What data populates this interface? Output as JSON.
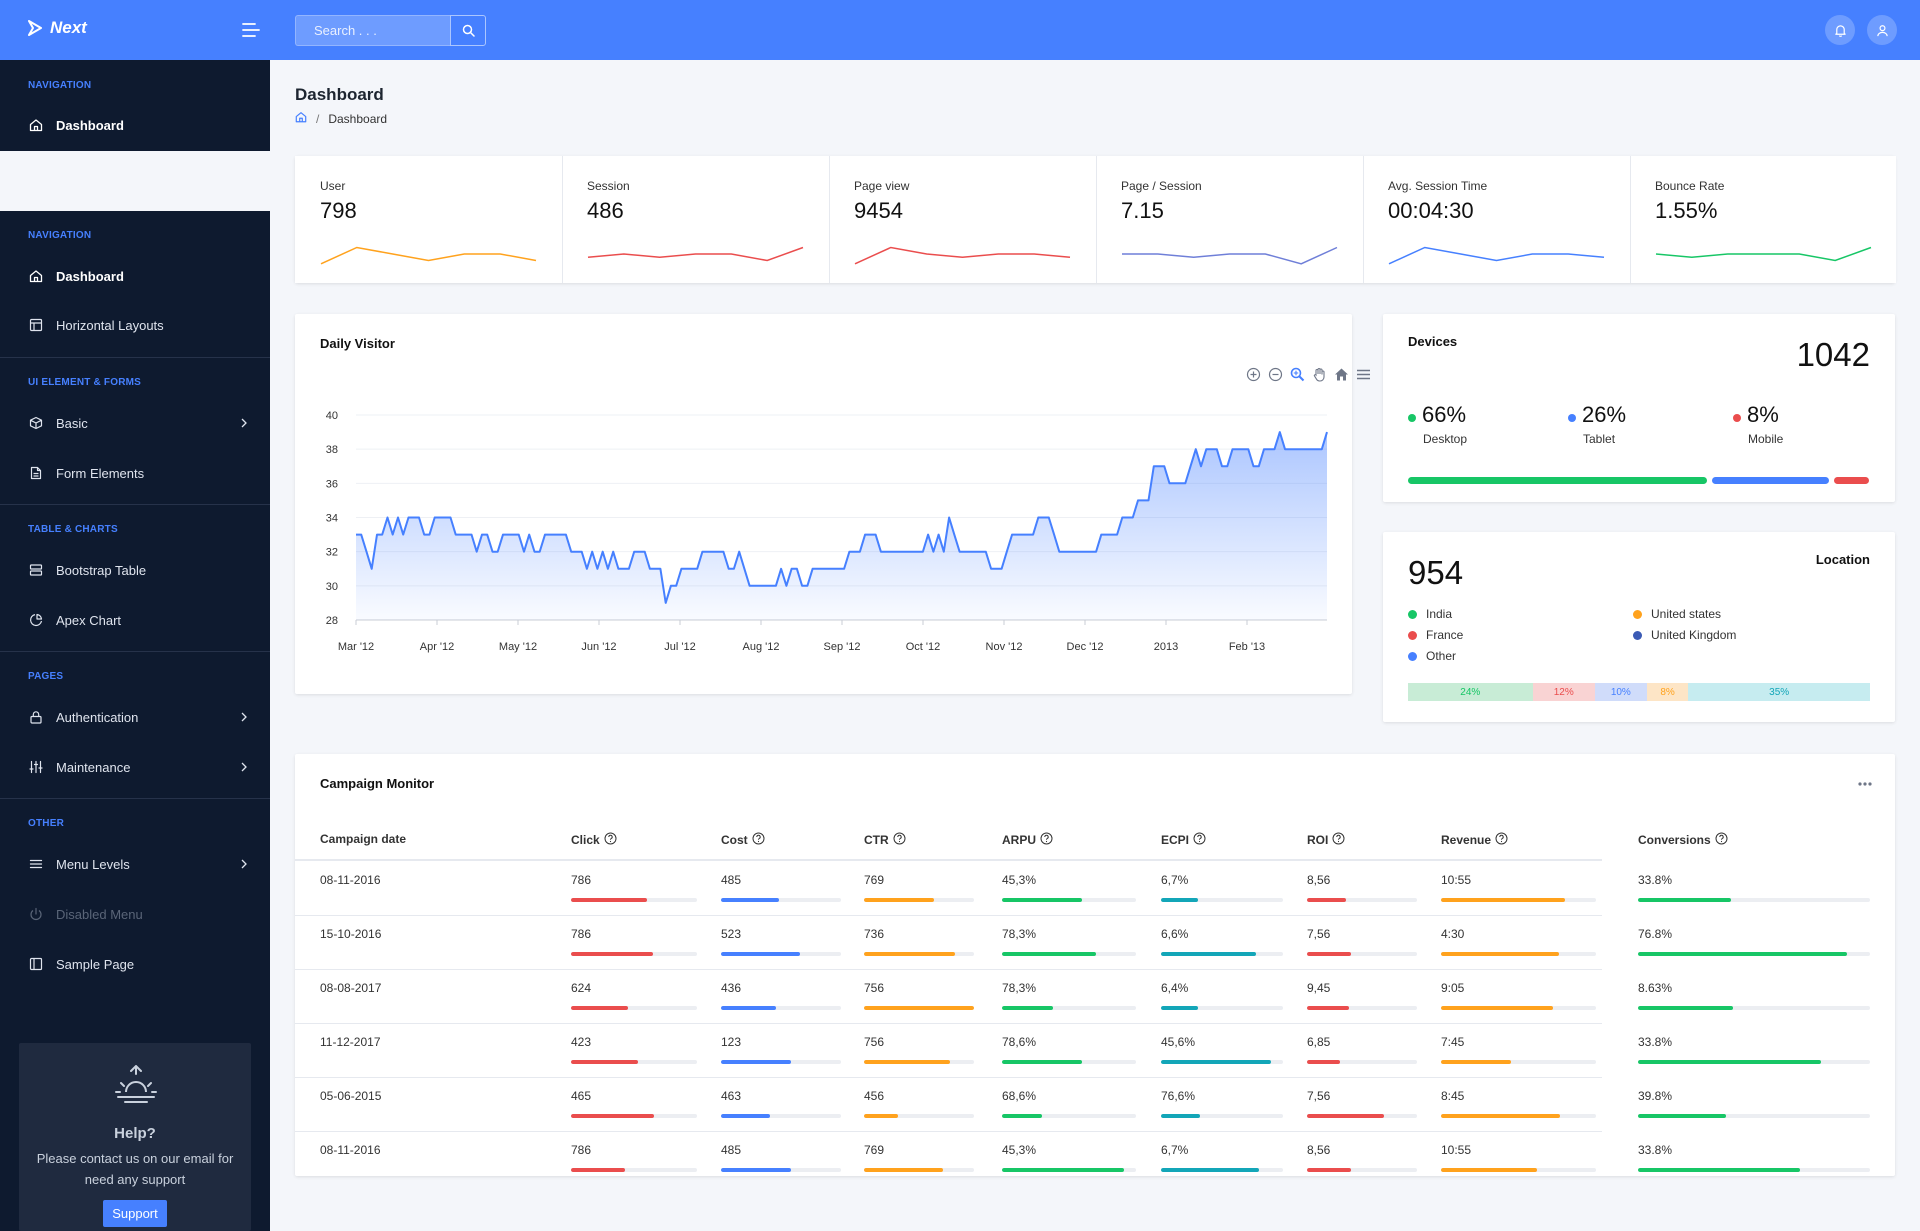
{
  "brand": {
    "name": "Next"
  },
  "search": {
    "placeholder": "Search . . ."
  },
  "sidebar_top": {
    "caption": "NAVIGATION",
    "item": "Dashboard"
  },
  "sidebar": {
    "sections": [
      {
        "caption": "NAVIGATION",
        "items": [
          {
            "label": "Dashboard",
            "icon": "home-icon",
            "active": true
          },
          {
            "label": "Horizontal Layouts",
            "icon": "layout-icon"
          }
        ]
      },
      {
        "caption": "UI ELEMENT & FORMS",
        "items": [
          {
            "label": "Basic",
            "icon": "box-icon",
            "chevron": true
          },
          {
            "label": "Form Elements",
            "icon": "file-text-icon"
          }
        ]
      },
      {
        "caption": "TABLE & CHARTS",
        "items": [
          {
            "label": "Bootstrap Table",
            "icon": "server-icon"
          },
          {
            "label": "Apex Chart",
            "icon": "pie-chart-icon"
          }
        ]
      },
      {
        "caption": "PAGES",
        "items": [
          {
            "label": "Authentication",
            "icon": "lock-icon",
            "chevron": true
          },
          {
            "label": "Maintenance",
            "icon": "sliders-icon",
            "chevron": true
          }
        ]
      },
      {
        "caption": "OTHER",
        "items": [
          {
            "label": "Menu Levels",
            "icon": "menu-icon",
            "chevron": true
          },
          {
            "label": "Disabled Menu",
            "icon": "power-icon",
            "disabled": true
          },
          {
            "label": "Sample Page",
            "icon": "sidebar-icon"
          }
        ]
      }
    ],
    "help": {
      "title": "Help?",
      "text": "Please contact us on our email for need any support",
      "button": "Support"
    }
  },
  "page": {
    "title": "Dashboard",
    "breadcrumb": "Dashboard"
  },
  "stats": [
    {
      "label": "User",
      "value": "798",
      "color": "#ffa21d",
      "trend": [
        7,
        2,
        4,
        6,
        4,
        4,
        6
      ]
    },
    {
      "label": "Session",
      "value": "486",
      "color": "#ea4d4d",
      "trend": [
        5,
        4,
        5,
        4,
        4,
        6,
        2
      ]
    },
    {
      "label": "Page view",
      "value": "9454",
      "color": "#ea4d4d",
      "trend": [
        7,
        2,
        4,
        5,
        4,
        4,
        5
      ]
    },
    {
      "label": "Page / Session",
      "value": "7.15",
      "color": "#6f7fd8",
      "trend": [
        4,
        4,
        5,
        4,
        4,
        7,
        2
      ]
    },
    {
      "label": "Avg. Session Time",
      "value": "00:04:30",
      "color": "#4680ff",
      "trend": [
        7,
        2,
        4,
        6,
        4,
        4,
        5
      ]
    },
    {
      "label": "Bounce Rate",
      "value": "1.55%",
      "color": "#17c666",
      "trend": [
        4,
        5,
        4,
        4,
        4,
        6,
        2
      ]
    }
  ],
  "daily_visitor": {
    "title": "Daily Visitor",
    "chart_data": {
      "type": "area",
      "title": "Daily Visitor",
      "series": [
        {
          "values": [
            33,
            33,
            32,
            31,
            33,
            33,
            34,
            33,
            34,
            33,
            34,
            34,
            34,
            33,
            33,
            34,
            34,
            34,
            34,
            33,
            33,
            33,
            33,
            32,
            33,
            33,
            32,
            32,
            33,
            33,
            33,
            33,
            32,
            33,
            32,
            32,
            33,
            33,
            33,
            33,
            33,
            32,
            32,
            32,
            31,
            32,
            31,
            32,
            31,
            32,
            31,
            31,
            31,
            32,
            32,
            32,
            31,
            31,
            31,
            29,
            30,
            30,
            31,
            31,
            31,
            31,
            32,
            32,
            32,
            32,
            32,
            31,
            31,
            32,
            31,
            30,
            30,
            30,
            30,
            30,
            30,
            31,
            30,
            31,
            31,
            30,
            30,
            31,
            31,
            31,
            31,
            31,
            31,
            31,
            32,
            32,
            32,
            33,
            33,
            33,
            32,
            32,
            32,
            32,
            32,
            32,
            32,
            32,
            32,
            33,
            32,
            33,
            32,
            34,
            33,
            32,
            32,
            32,
            32,
            32,
            32,
            31,
            31,
            31,
            32,
            33,
            33,
            33,
            33,
            33,
            34,
            34,
            34,
            33,
            32,
            32,
            32,
            32,
            32,
            32,
            32,
            32,
            33,
            33,
            33,
            33,
            34,
            34,
            34,
            35,
            35,
            35,
            37,
            37,
            37,
            36,
            36,
            36,
            36,
            37,
            38,
            37,
            38,
            38,
            38,
            37,
            37,
            38,
            38,
            38,
            38,
            37,
            37,
            38,
            38,
            38,
            39,
            38,
            38,
            38,
            38,
            38,
            38,
            38,
            38,
            39
          ]
        }
      ],
      "x_ticks": [
        "Mar '12",
        "Apr '12",
        "May '12",
        "Jun '12",
        "Jul '12",
        "Aug '12",
        "Sep '12",
        "Oct '12",
        "Nov '12",
        "Dec '12",
        "2013",
        "Feb '13"
      ],
      "y_ticks": [
        "40",
        "38",
        "36",
        "34",
        "32",
        "30",
        "28"
      ],
      "ylim": [
        28,
        40
      ],
      "color": "#4680ff",
      "legend": "none"
    }
  },
  "devices": {
    "title": "Devices",
    "total": "1042",
    "items": [
      {
        "pct": "66%",
        "label": "Desktop",
        "color": "#17c666",
        "share": 0.66
      },
      {
        "pct": "26%",
        "label": "Tablet",
        "color": "#4680ff",
        "share": 0.26
      },
      {
        "pct": "8%",
        "label": "Mobile",
        "color": "#ea4d4d",
        "share": 0.08
      }
    ]
  },
  "location": {
    "title": "Location",
    "total": "954",
    "items": [
      {
        "label": "India",
        "color": "#17c666"
      },
      {
        "label": "France",
        "color": "#ea4d4d"
      },
      {
        "label": "Other",
        "color": "#4680ff"
      },
      {
        "label": "United states",
        "color": "#ffa21d"
      },
      {
        "label": "United Kingdom",
        "color": "#3b5bb5"
      }
    ],
    "segments": [
      {
        "label": "24%",
        "share": 0.24,
        "bg": "#c8ecd6",
        "fg": "#17c666"
      },
      {
        "label": "12%",
        "share": 0.12,
        "bg": "#f9d3d3",
        "fg": "#ea4d4d"
      },
      {
        "label": "10%",
        "share": 0.1,
        "bg": "#d0dcfa",
        "fg": "#4680ff"
      },
      {
        "label": "8%",
        "share": 0.08,
        "bg": "#fde5c6",
        "fg": "#ffa21d"
      },
      {
        "label": "35%",
        "share": 0.35,
        "bg": "#c6ecf0",
        "fg": "#13a6b8"
      }
    ]
  },
  "campaign": {
    "title": "Campaign Monitor",
    "columns": [
      "Campaign date",
      "Click",
      "Cost",
      "CTR",
      "ARPU",
      "ECPI",
      "ROI",
      "Revenue",
      "Conversions"
    ],
    "bar_colors": [
      "#ea4d4d",
      "#4680ff",
      "#ffa21d",
      "#17c666",
      "#13a6b8",
      "#ea4d4d",
      "#ffa21d",
      "#17c666"
    ],
    "rows": [
      {
        "date": "08-11-2016",
        "values": [
          "786",
          "485",
          "769",
          "45,3%",
          "6,7%",
          "8,56",
          "10:55",
          "33.8%"
        ],
        "levels": [
          0.6,
          0.48,
          0.64,
          0.6,
          0.3,
          0.35,
          0.8,
          0.4
        ]
      },
      {
        "date": "15-10-2016",
        "values": [
          "786",
          "523",
          "736",
          "78,3%",
          "6,6%",
          "7,56",
          "4:30",
          "76.8%"
        ],
        "levels": [
          0.65,
          0.66,
          0.83,
          0.7,
          0.78,
          0.4,
          0.76,
          0.9
        ]
      },
      {
        "date": "08-08-2017",
        "values": [
          "624",
          "436",
          "756",
          "78,3%",
          "6,4%",
          "9,45",
          "9:05",
          "8.63%"
        ],
        "levels": [
          0.45,
          0.46,
          1.0,
          0.38,
          0.3,
          0.38,
          0.72,
          0.41
        ]
      },
      {
        "date": "11-12-2017",
        "values": [
          "423",
          "123",
          "756",
          "78,6%",
          "45,6%",
          "6,85",
          "7:45",
          "33.8%"
        ],
        "levels": [
          0.53,
          0.58,
          0.78,
          0.6,
          0.9,
          0.3,
          0.45,
          0.79
        ]
      },
      {
        "date": "05-06-2015",
        "values": [
          "465",
          "463",
          "456",
          "68,6%",
          "76,6%",
          "7,56",
          "8:45",
          "39.8%"
        ],
        "levels": [
          0.66,
          0.41,
          0.31,
          0.3,
          0.32,
          0.7,
          0.77,
          0.38
        ]
      },
      {
        "date": "08-11-2016",
        "values": [
          "786",
          "485",
          "769",
          "45,3%",
          "6,7%",
          "8,56",
          "10:55",
          "33.8%"
        ],
        "levels": [
          0.43,
          0.58,
          0.72,
          0.91,
          0.8,
          0.4,
          0.62,
          0.7
        ]
      }
    ]
  }
}
